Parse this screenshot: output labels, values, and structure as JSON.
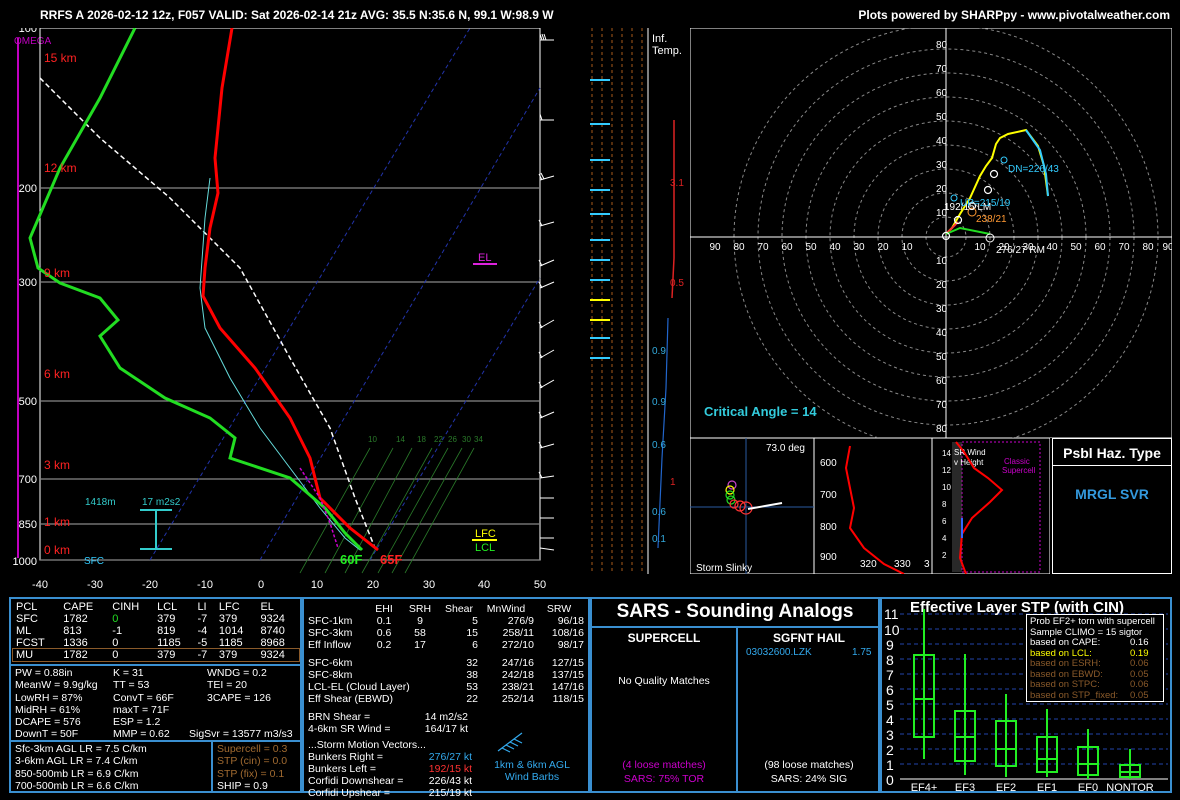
{
  "header": {
    "left": "RRFS A 2026-02-12 12z, F057  VALID: Sat 2026-02-14 21z  AVG: 35.5 N:35.6 N, 99.1 W:98.9 W",
    "right": "Plots powered by SHARPpy - www.pivotalweather.com"
  },
  "skewt": {
    "omega_label": "OMEGA",
    "height_labels": [
      "15 km",
      "12 km",
      "9 km",
      "6 km",
      "3 km",
      "1 km",
      "0 km"
    ],
    "pressure_labels": [
      "100",
      "200",
      "300",
      "500",
      "700",
      "850",
      "1000"
    ],
    "temp_ticks": [
      "-40",
      "-30",
      "-20",
      "-10",
      "0",
      "10",
      "20",
      "30",
      "40",
      "50"
    ],
    "el_label": "EL",
    "lfc_label": "LFC",
    "lcl_label": "LCL",
    "surface_dewpoint": "60F",
    "surface_temp": "65F",
    "sfc_label": "SFC",
    "eff_inflow_base": "1418m",
    "eff_inflow_srh": "17 m2s2",
    "mixing_ratio_labels": [
      "10",
      "14",
      "18",
      "22",
      "26",
      "30",
      "34"
    ]
  },
  "inferred_temp": {
    "label1": "Inf.",
    "label2": "Temp.",
    "values": [
      "3.1",
      "0.5",
      "0.9",
      "0.9",
      "0.6",
      "1",
      "0.6",
      "0.1"
    ]
  },
  "hodograph": {
    "y_ticks": [
      "80",
      "70",
      "60",
      "50",
      "40",
      "30",
      "20",
      "10",
      "10",
      "20",
      "30",
      "40",
      "50",
      "60",
      "70",
      "80"
    ],
    "x_ticks": [
      "90",
      "80",
      "70",
      "60",
      "50",
      "40",
      "30",
      "20",
      "10",
      "10",
      "20",
      "30",
      "40",
      "50",
      "60",
      "70",
      "80",
      "90"
    ],
    "dn_label": "DN=226/43",
    "lm_label": "192/15 LM",
    "up_label": "UP=215/19",
    "mean_label": "238/21",
    "rm_label": "276/27 RM",
    "critical_angle": "Critical Angle = 14"
  },
  "storm_slinky": {
    "angle": "73.0 deg",
    "label": "Storm Slinky"
  },
  "theta_panel": {
    "y_ticks": [
      "600",
      "700",
      "800",
      "900"
    ],
    "x_ticks": [
      "320",
      "330",
      "3"
    ]
  },
  "srwind_panel": {
    "label1": "SR Wind",
    "label2": "v Height",
    "classic": "Classic",
    "supercell": "Supercell",
    "y_ticks": [
      "14",
      "12",
      "10",
      "8",
      "6",
      "4",
      "2"
    ]
  },
  "hazard": {
    "title": "Psbl Haz. Type",
    "value": "MRGL SVR"
  },
  "parcels": {
    "headers": [
      "PCL",
      "CAPE",
      "CINH",
      "LCL",
      "LI",
      "LFC",
      "EL"
    ],
    "rows": [
      [
        "SFC",
        "1782",
        "0",
        "379",
        "-7",
        "379",
        "9324"
      ],
      [
        "ML",
        "813",
        "-1",
        "819",
        "-4",
        "1014",
        "8740"
      ],
      [
        "FCST",
        "1336",
        "0",
        "1185",
        "-5",
        "1185",
        "8968"
      ],
      [
        "MU",
        "1782",
        "0",
        "379",
        "-7",
        "379",
        "9324"
      ]
    ]
  },
  "thermo": {
    "col1": [
      "PW = 0.88in",
      "MeanW = 9.9g/kg",
      "LowRH = 87%",
      "MidRH = 61%",
      "DCAPE = 576",
      "DownT = 50F"
    ],
    "col2": [
      "K = 31",
      "TT = 53",
      "ConvT = 66F",
      "maxT = 71F",
      "ESP = 1.2",
      "MMP = 0.62"
    ],
    "col3": [
      "WNDG = 0.2",
      "TEI = 20",
      "3CAPE = 126"
    ],
    "sigsvr": "SigSvr = 13577 m3/s3",
    "lapse": [
      "Sfc-3km AGL LR = 7.5 C/km",
      "3-6km AGL LR = 7.4 C/km",
      "850-500mb LR = 6.9 C/km",
      "700-500mb LR = 6.6 C/km"
    ],
    "stp": [
      "Supercell = 0.3",
      "STP (cin) = 0.0",
      "STP (fix) = 0.1",
      "SHIP = 0.9"
    ]
  },
  "kinematics": {
    "headers": [
      "EHI",
      "SRH",
      "Shear",
      "MnWind",
      "SRW"
    ],
    "rows1": [
      [
        "SFC-1km",
        "0.1",
        "9",
        "5",
        "276/9",
        "96/18"
      ],
      [
        "SFC-3km",
        "0.6",
        "58",
        "15",
        "258/11",
        "108/16"
      ],
      [
        "Eff Inflow",
        "0.2",
        "17",
        "6",
        "272/10",
        "98/17"
      ]
    ],
    "rows2": [
      [
        "SFC-6km",
        "",
        "",
        "32",
        "247/16",
        "127/15"
      ],
      [
        "SFC-8km",
        "",
        "",
        "38",
        "242/18",
        "137/15"
      ],
      [
        "LCL-EL (Cloud Layer)",
        "",
        "",
        "53",
        "238/21",
        "147/16"
      ],
      [
        "Eff Shear (EBWD)",
        "",
        "",
        "22",
        "252/14",
        "118/15"
      ]
    ],
    "brn": "BRN Shear =",
    "brn_val": "14 m2/s2",
    "srw46": "4-6km SR Wind =",
    "srw46_val": "164/17 kt",
    "storm_motion": "...Storm Motion Vectors...",
    "bunkers_right": "Bunkers Right =",
    "bunkers_right_val": "276/27 kt",
    "bunkers_left": "Bunkers Left =",
    "bunkers_left_val": "192/15 kt",
    "corfidi_down": "Corfidi Downshear =",
    "corfidi_down_val": "226/43 kt",
    "corfidi_up": "Corfidi Upshear =",
    "corfidi_up_val": "215/19 kt",
    "barb_label1": "1km & 6km AGL",
    "barb_label2": "Wind Barbs"
  },
  "sars": {
    "title": "SARS - Sounding Analogs",
    "supercell_head": "SUPERCELL",
    "hail_head": "SGFNT HAIL",
    "no_matches": "No Quality Matches",
    "hail_match_site": "03032600.LZK",
    "hail_match_val": "1.75",
    "supercell_loose": "(4 loose matches)",
    "supercell_pct": "SARS: 75% TOR",
    "hail_loose": "(98 loose matches)",
    "hail_pct": "SARS: 24% SIG"
  },
  "stp_panel": {
    "title": "Effective Layer STP (with CIN)",
    "y_ticks": [
      "11",
      "10",
      "9",
      "8",
      "7",
      "6",
      "5",
      "4",
      "3",
      "2",
      "1",
      "0"
    ],
    "categories": [
      "EF4+",
      "EF3",
      "EF2",
      "EF1",
      "EF0",
      "NONTOR"
    ],
    "legend_title1": "Prob EF2+ torn with supercell",
    "legend_title2": "Sample CLIMO = 15 sigtor",
    "legend_rows": [
      [
        "based on CAPE:",
        "0.16"
      ],
      [
        "based on LCL:",
        "0.19"
      ],
      [
        "based on ESRH:",
        "0.06"
      ],
      [
        "based on EBWD:",
        "0.05"
      ],
      [
        "based on STPC:",
        "0.06"
      ],
      [
        "based on STP_fixed:",
        "0.05"
      ]
    ]
  },
  "colors": {
    "accent": "#3a8fd0",
    "temp": "#ff0000",
    "dewpoint": "#00ff00",
    "cyan": "#00ccff",
    "yellow": "#ffff00",
    "magenta": "#ff00ff"
  }
}
